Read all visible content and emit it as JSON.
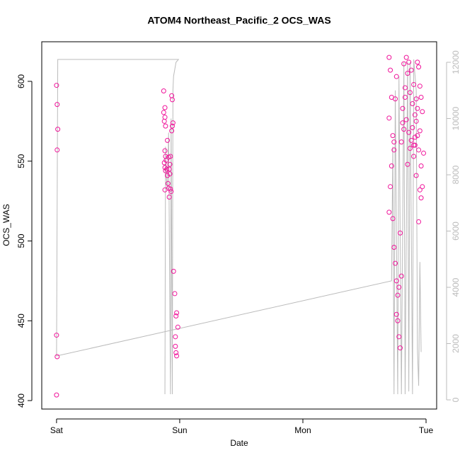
{
  "chart_data": {
    "type": "scatter",
    "title": "ATOM4 Northeast_Pacific_2 OCS_WAS",
    "x_label": "Date",
    "y_label": "OCS_WAS",
    "xlim": [
      -0.12,
      3.086
    ],
    "xticks": [
      {
        "value": 0,
        "label": "Sat"
      },
      {
        "value": 1,
        "label": "Sun"
      },
      {
        "value": 2,
        "label": "Mon"
      },
      {
        "value": 3,
        "label": "Tue"
      }
    ],
    "ylim": [
      394.7,
      624.8
    ],
    "yticks": [
      400,
      450,
      500,
      550,
      600
    ],
    "y2lim": [
      -327,
      12730
    ],
    "y2ticks": [
      0,
      2000,
      4000,
      6000,
      8000,
      10000,
      12000
    ],
    "series": [
      {
        "color": "#bbbbbb",
        "axis": "y2",
        "type": "line",
        "x": [
          0.88,
          0.885,
          0.89,
          0.9,
          0.91,
          0.925,
          0.93,
          0.94,
          0.945,
          0.95,
          0.97,
          0.99,
          0.01,
          0.0,
          2.72,
          2.73,
          2.74,
          2.75,
          2.77,
          2.78,
          2.8,
          2.82,
          2.83,
          2.85,
          2.86,
          2.87,
          2.89,
          2.9,
          2.92,
          2.93,
          2.94,
          2.95,
          2.96
        ],
        "values": [
          200,
          9000,
          8000,
          7500,
          9500,
          200,
          10000,
          200,
          11000,
          11500,
          12000,
          12100,
          12100,
          1560,
          4230,
          9000,
          200,
          11000,
          200,
          11500,
          200,
          12000,
          200,
          12000,
          300,
          12000,
          200,
          12100,
          11000,
          1800,
          500,
          4900,
          1700
        ]
      },
      {
        "color": "#f0149a",
        "x": [
          0.0,
          0.005,
          0.01,
          0.005,
          0.0,
          0.005,
          0.0,
          0.87,
          0.88,
          0.87,
          0.88,
          0.875,
          0.885,
          0.9,
          0.88,
          0.885,
          0.89,
          0.875,
          0.88,
          0.895,
          0.885,
          0.9,
          0.905,
          0.91,
          0.88,
          0.915,
          0.91,
          0.925,
          0.92,
          0.915,
          0.92,
          0.935,
          0.94,
          0.945,
          0.94,
          0.935,
          0.925,
          0.93,
          0.95,
          0.96,
          0.975,
          0.97,
          0.985,
          0.965,
          0.965,
          0.97,
          0.975,
          2.7,
          2.71,
          2.72,
          2.7,
          2.72,
          2.71,
          2.7,
          2.73,
          2.74,
          2.75,
          2.73,
          2.74,
          2.76,
          2.75,
          2.74,
          2.76,
          2.77,
          2.78,
          2.76,
          2.77,
          2.78,
          2.79,
          2.8,
          2.79,
          2.81,
          2.8,
          2.82,
          2.81,
          2.83,
          2.82,
          2.84,
          2.83,
          2.85,
          2.84,
          2.86,
          2.85,
          2.87,
          2.86,
          2.88,
          2.87,
          2.89,
          2.88,
          2.9,
          2.89,
          2.91,
          2.9,
          2.92,
          2.91,
          2.93,
          2.92,
          2.94,
          2.93,
          2.95,
          2.94,
          2.96,
          2.95,
          2.97,
          2.96,
          2.98,
          2.97,
          2.95,
          2.96,
          2.94,
          2.93,
          2.92,
          2.91,
          2.9
        ],
        "values": [
          597.5,
          585.5,
          570,
          557,
          441,
          427.5,
          403.5,
          594,
          583.5,
          580.5,
          577.5,
          575,
          572,
          563,
          556.5,
          553,
          550.5,
          549,
          546,
          545,
          544,
          541,
          536,
          533,
          532,
          527.5,
          552.5,
          553,
          548,
          545,
          542,
          591,
          588.5,
          574,
          572,
          569,
          532.5,
          531,
          481,
          467,
          455,
          453,
          446,
          440,
          434,
          430,
          428,
          615,
          607,
          590,
          577,
          547,
          534,
          518,
          514,
          496,
          486,
          566,
          562,
          603,
          589,
          557,
          475,
          466,
          471,
          454,
          450,
          440,
          433,
          478,
          505,
          574,
          562,
          611,
          583,
          596,
          570,
          615,
          590,
          605,
          576,
          612,
          548,
          593,
          568,
          607,
          558,
          586,
          563,
          598,
          571,
          579,
          553,
          589,
          560,
          612,
          575,
          609,
          566,
          597,
          557,
          590,
          569,
          581,
          547,
          555,
          534,
          532,
          527,
          512,
          583,
          541,
          565,
          560
        ]
      }
    ]
  }
}
